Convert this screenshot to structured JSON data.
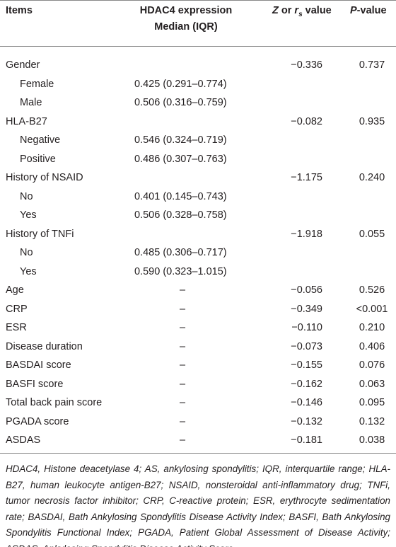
{
  "table": {
    "header": {
      "items": "Items",
      "hdac4_line1": "HDAC4 expression",
      "hdac4_line2": "Median (IQR)",
      "z_part1": "Z",
      "z_part2": " or ",
      "z_part3": "r",
      "z_part4": "s",
      "z_part5": " value",
      "p_part1": "P",
      "p_part2": "-value"
    },
    "rows": [
      {
        "label": "Gender",
        "median": null,
        "z": "−0.336",
        "p": "0.737",
        "subrows": [
          {
            "label": "Female",
            "median": "0.425 (0.291–0.774)"
          },
          {
            "label": "Male",
            "median": "0.506 (0.316–0.759)"
          }
        ]
      },
      {
        "label": "HLA-B27",
        "median": null,
        "z": "−0.082",
        "p": "0.935",
        "subrows": [
          {
            "label": "Negative",
            "median": "0.546 (0.324–0.719)"
          },
          {
            "label": "Positive",
            "median": "0.486 (0.307–0.763)"
          }
        ]
      },
      {
        "label": "History of NSAID",
        "median": null,
        "z": "−1.175",
        "p": "0.240",
        "subrows": [
          {
            "label": "No",
            "median": "0.401 (0.145–0.743)"
          },
          {
            "label": "Yes",
            "median": "0.506 (0.328–0.758)"
          }
        ]
      },
      {
        "label": "History of TNFi",
        "median": null,
        "z": "−1.918",
        "p": "0.055",
        "subrows": [
          {
            "label": "No",
            "median": "0.485 (0.306–0.717)"
          },
          {
            "label": "Yes",
            "median": "0.590 (0.323–1.015)"
          }
        ]
      },
      {
        "label": "Age",
        "median": "–",
        "z": "−0.056",
        "p": "0.526",
        "subrows": []
      },
      {
        "label": "CRP",
        "median": "–",
        "z": "−0.349",
        "p": "<0.001",
        "subrows": []
      },
      {
        "label": "ESR",
        "median": "–",
        "z": "−0.110",
        "p": "0.210",
        "subrows": []
      },
      {
        "label": "Disease duration",
        "median": "–",
        "z": "−0.073",
        "p": "0.406",
        "subrows": []
      },
      {
        "label": "BASDAI score",
        "median": "–",
        "z": "−0.155",
        "p": "0.076",
        "subrows": []
      },
      {
        "label": "BASFI score",
        "median": "–",
        "z": "−0.162",
        "p": "0.063",
        "subrows": []
      },
      {
        "label": "Total back pain score",
        "median": "–",
        "z": "−0.146",
        "p": "0.095",
        "subrows": []
      },
      {
        "label": "PGADA score",
        "median": "–",
        "z": "−0.132",
        "p": "0.132",
        "subrows": []
      },
      {
        "label": "ASDAS",
        "median": "–",
        "z": "−0.181",
        "p": "0.038",
        "subrows": []
      }
    ],
    "footnote": "HDAC4, Histone deacetylase 4; AS, ankylosing spondylitis; IQR, interquartile range; HLA-B27, human leukocyte antigen-B27; NSAID, nonsteroidal anti-inflammatory drug; TNFi, tumor necrosis factor inhibitor; CRP, C-reactive protein; ESR, erythrocyte sedimentation rate; BASDAI, Bath Ankylosing Spondylitis Disease Activity Index; BASFI, Bath Ankylosing Spondylitis Functional Index; PGADA, Patient Global Assessment of Disease Activity; ASDAS, Ankylosing Spondylitis Disease Activity Score."
  }
}
